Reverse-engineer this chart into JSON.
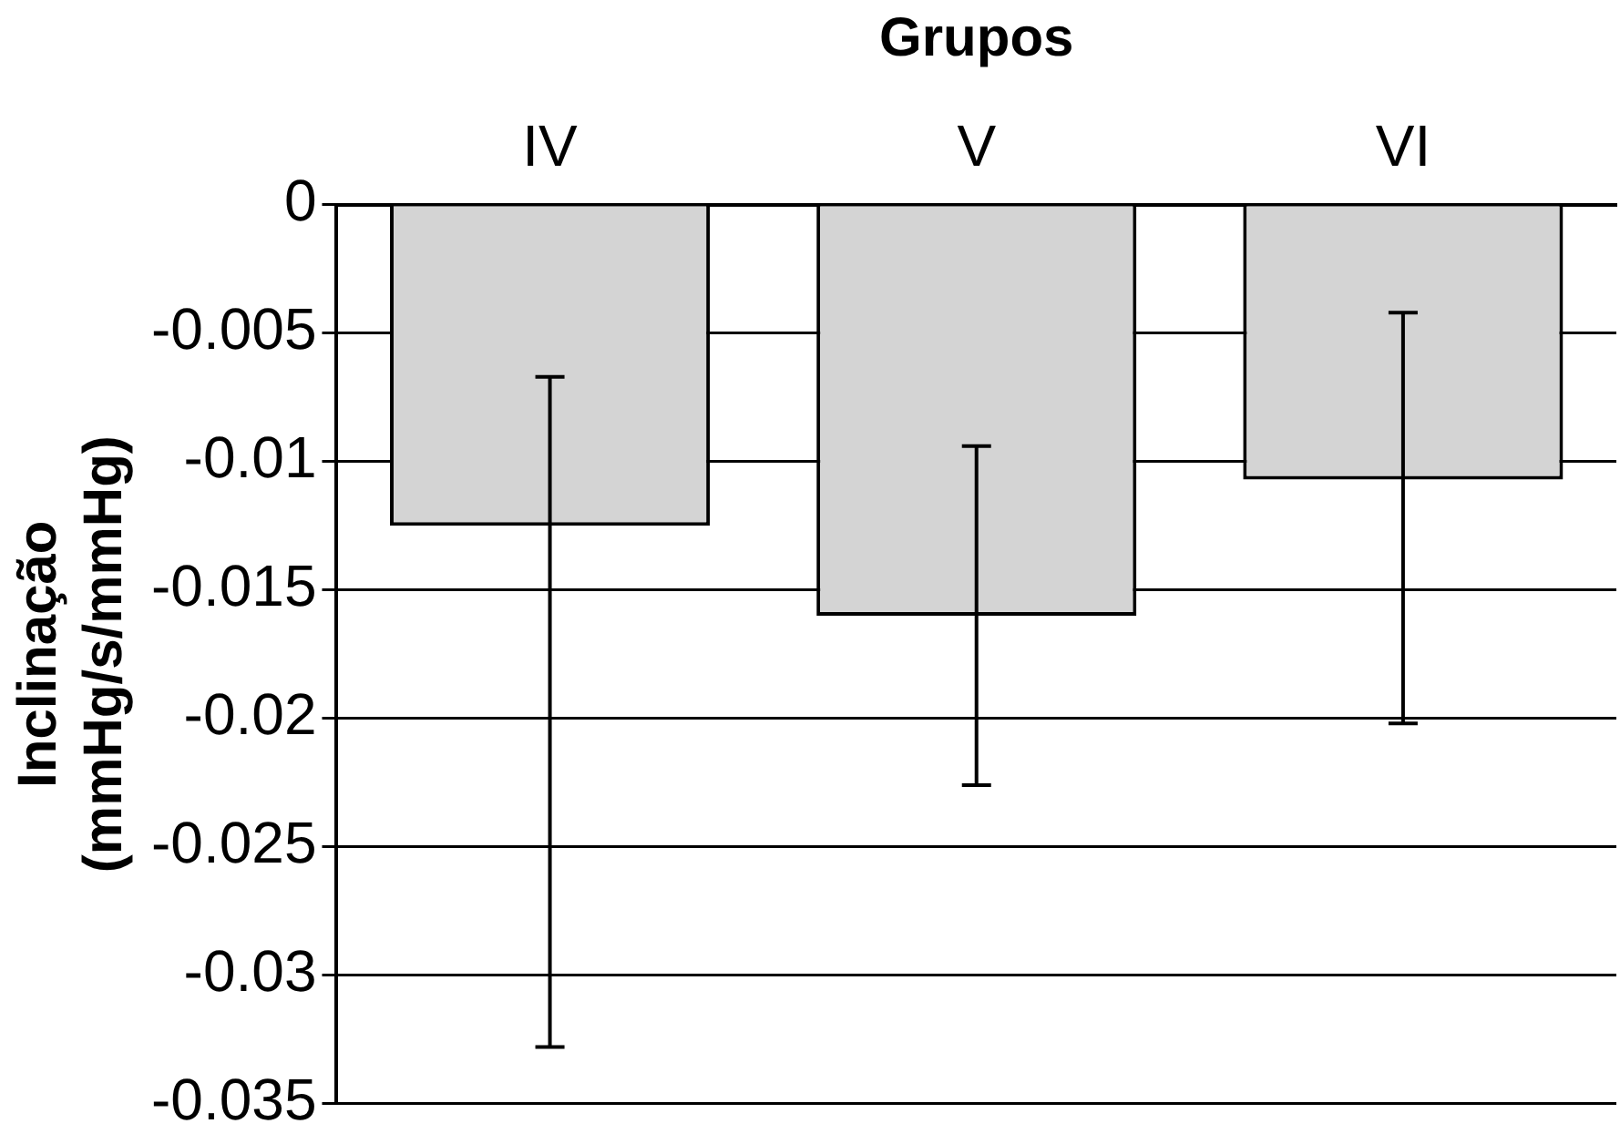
{
  "chart_data": {
    "type": "bar",
    "xlabel": "Grupos",
    "ylabel": "Inclinação\n(mmHg/s/mmHg)",
    "categories": [
      "IV",
      "V",
      "VI"
    ],
    "values": [
      -0.0125,
      -0.016,
      -0.0107
    ],
    "errors": [
      [
        -0.0328,
        -0.0067
      ],
      [
        -0.0226,
        -0.0094
      ],
      [
        -0.0202,
        -0.0042
      ]
    ],
    "color": "#d4d4d4",
    "ylim": [
      -0.035,
      0
    ],
    "yticks": [
      -0.035,
      -0.03,
      -0.025,
      -0.02,
      -0.015,
      -0.01,
      -0.005,
      0
    ],
    "grid": "y",
    "legend": false
  }
}
